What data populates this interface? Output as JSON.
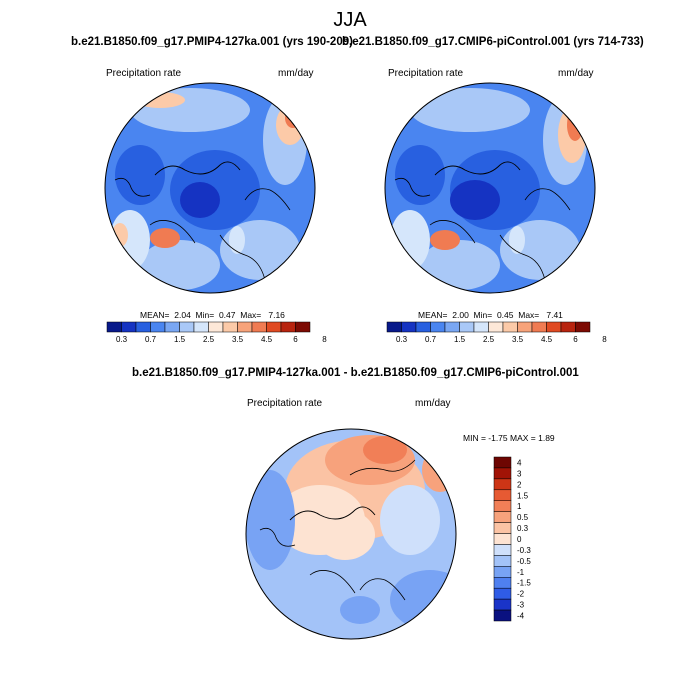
{
  "season": "JJA",
  "colors": {
    "absolute": [
      "#08198a",
      "#1533c2",
      "#2860e0",
      "#4a85f0",
      "#7aa7f3",
      "#a9c8f7",
      "#d5e6fb",
      "#fde8d8",
      "#fccaa8",
      "#f7a37a",
      "#f07b52",
      "#e04a22",
      "#b8240f",
      "#7d0b03"
    ],
    "difference": [
      "#0a1180",
      "#1a34c8",
      "#2f5ce6",
      "#4f80f0",
      "#78a3f4",
      "#a3c3f8",
      "#cfe0fb",
      "#fde3d2",
      "#fbc3a4",
      "#f7a27c",
      "#f17f57",
      "#e65a33",
      "#cd3516",
      "#a11306",
      "#6e0602"
    ]
  },
  "panels": [
    {
      "id": "pmip4",
      "title": "b.e21.B1850.f09_g17.PMIP4-127ka.001 (yrs 190-209)",
      "variable_label": "Precipitation rate",
      "units_label": "mm/day",
      "stats": {
        "mean_label": "MEAN=",
        "mean": "2.04",
        "min_label": "Min=",
        "min": "0.47",
        "max_label": "Max=",
        "max": "7.16"
      },
      "colorbar_ticks": [
        "0.3",
        "0.7",
        "1.5",
        "2.5",
        "3.5",
        "4.5",
        "6",
        "8"
      ]
    },
    {
      "id": "picontrol",
      "title": "b.e21.B1850.f09_g17.CMIP6-piControl.001 (yrs 714-733)",
      "variable_label": "Precipitation rate",
      "units_label": "mm/day",
      "stats": {
        "mean_label": "MEAN=",
        "mean": "2.00",
        "min_label": "Min=",
        "min": "0.45",
        "max_label": "Max=",
        "max": "7.41"
      },
      "colorbar_ticks": [
        "0.3",
        "0.7",
        "1.5",
        "2.5",
        "3.5",
        "4.5",
        "6",
        "8"
      ]
    }
  ],
  "difference": {
    "title": "b.e21.B1850.f09_g17.PMIP4-127ka.001 - b.e21.B1850.f09_g17.CMIP6-piControl.001",
    "variable_label": "Precipitation rate",
    "units_label": "mm/day",
    "minmax_text": "MIN =  -1.75 MAX =   1.89",
    "colorbar_ticks": [
      "4",
      "3",
      "2",
      "1.5",
      "1",
      "0.5",
      "0.3",
      "0",
      "-0.3",
      "-0.5",
      "-1",
      "-1.5",
      "-2",
      "-3",
      "-4"
    ]
  }
}
